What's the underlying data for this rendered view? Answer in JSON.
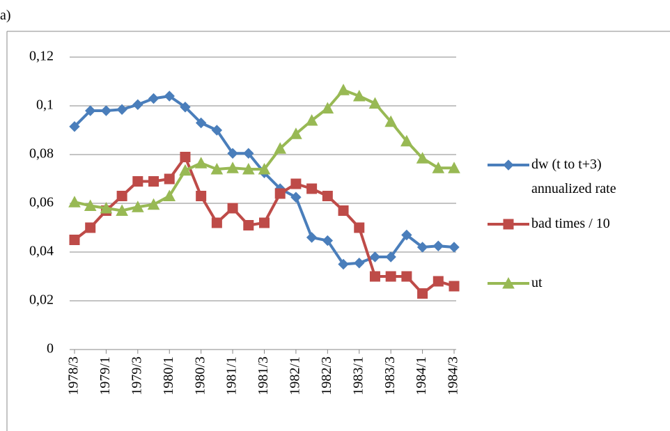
{
  "chart_data": {
    "type": "line",
    "panel_label": "a)",
    "categories": [
      "1978/3",
      null,
      "1979/1",
      null,
      "1979/3",
      null,
      "1980/1",
      null,
      "1980/3",
      null,
      "1981/1",
      null,
      "1981/3",
      null,
      "1982/1",
      null,
      "1982/3",
      null,
      "1983/1",
      null,
      "1983/3",
      null,
      "1984/1",
      null,
      "1984/3"
    ],
    "series": [
      {
        "name": "dw (t to t+3) annualized rate",
        "color": "#4a7ebb",
        "marker": "diamond",
        "values": [
          0.0915,
          0.098,
          0.098,
          0.0985,
          0.1005,
          0.103,
          0.104,
          0.0995,
          0.093,
          0.09,
          0.0805,
          0.0805,
          0.0725,
          0.066,
          0.0625,
          0.046,
          0.0447,
          0.035,
          0.0355,
          0.038,
          0.038,
          0.047,
          0.042,
          0.0425,
          0.042
        ]
      },
      {
        "name": "bad times / 10",
        "color": "#be4b48",
        "marker": "square",
        "values": [
          0.045,
          0.05,
          0.057,
          0.063,
          0.069,
          0.069,
          0.07,
          0.079,
          0.063,
          0.052,
          0.058,
          0.051,
          0.052,
          0.064,
          0.068,
          0.066,
          0.063,
          0.057,
          0.05,
          0.03,
          0.03,
          0.03,
          0.023,
          0.028,
          0.026
        ]
      },
      {
        "name": "ut",
        "color": "#98b954",
        "marker": "triangle",
        "values": [
          0.0605,
          0.059,
          0.058,
          0.057,
          0.0585,
          0.0595,
          0.063,
          0.0735,
          0.0765,
          0.074,
          0.0745,
          0.074,
          0.074,
          0.0825,
          0.0885,
          0.094,
          0.099,
          0.1065,
          0.104,
          0.101,
          0.0935,
          0.0855,
          0.0785,
          0.0745,
          0.0745
        ]
      }
    ],
    "ylim": [
      0,
      0.12
    ],
    "yticks": [
      0,
      {
        "value": 0.02,
        "label": "0,02"
      },
      {
        "value": 0.04,
        "label": "0,04"
      },
      {
        "value": 0.06,
        "label": "0,06"
      },
      {
        "value": 0.08,
        "label": "0,08"
      },
      {
        "value": 0.1,
        "label": "0,1"
      },
      {
        "value": 0.12,
        "label": "0,12"
      }
    ],
    "grid": true,
    "legend": "right"
  }
}
